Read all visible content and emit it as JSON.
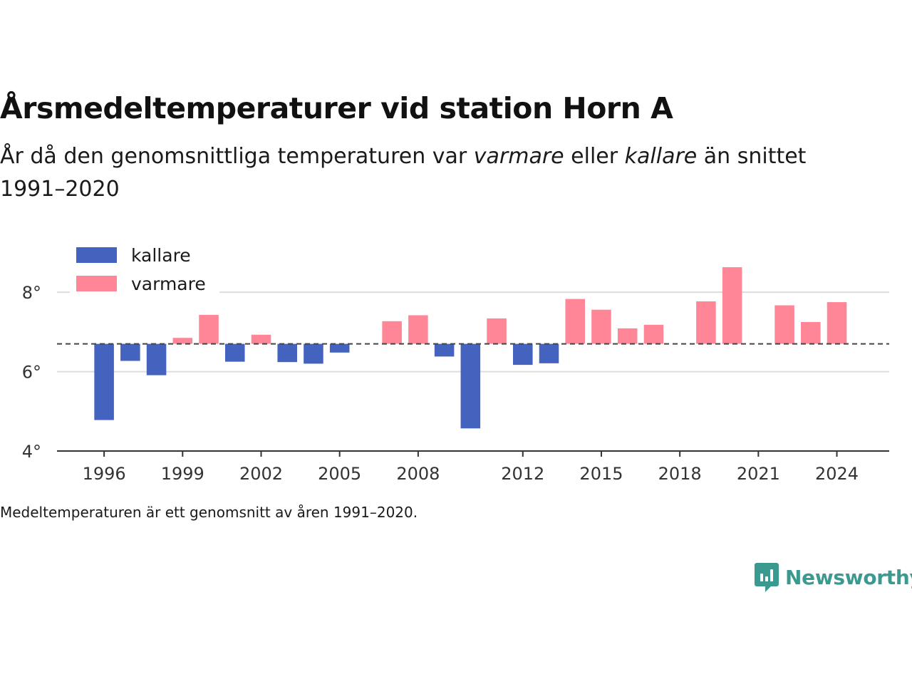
{
  "header": {
    "title": "Årsmedeltemperaturer vid station Horn A",
    "subtitle_part1": "År då den genomsnittliga temperaturen var ",
    "subtitle_warm": "varmare",
    "subtitle_part2": " eller ",
    "subtitle_cold": "kallare",
    "subtitle_part3": " än snittet 1991–2020"
  },
  "footnote": "Medeltemperaturen är ett genomsnitt av åren 1991–2020.",
  "brand": {
    "name": "Newsworthy",
    "icon": "newsworthy-logo-icon",
    "color": "#3b9a8f"
  },
  "chart_data": {
    "type": "bar",
    "title": "Årsmedeltemperaturer vid station Horn A",
    "xlabel": "",
    "ylabel": "",
    "baseline": 6.7,
    "ylim": [
      4,
      8.9
    ],
    "xlim": [
      1994.2,
      2026
    ],
    "yticks": [
      4,
      6,
      8
    ],
    "ytick_labels": [
      "4°",
      "6°",
      "8°"
    ],
    "xticks": [
      1996,
      1999,
      2002,
      2005,
      2008,
      2012,
      2015,
      2018,
      2021,
      2024
    ],
    "xtick_labels": [
      "1996",
      "1999",
      "2002",
      "2005",
      "2008",
      "2012",
      "2015",
      "2018",
      "2021",
      "2024"
    ],
    "grid": true,
    "legend_position": "top-left",
    "series": [
      {
        "name": "kallare",
        "color": "#4363be"
      },
      {
        "name": "varmare",
        "color": "#ff8696"
      }
    ],
    "years": [
      1996,
      1997,
      1998,
      1999,
      2000,
      2001,
      2002,
      2003,
      2004,
      2005,
      2006,
      2007,
      2008,
      2009,
      2010,
      2011,
      2012,
      2013,
      2014,
      2015,
      2016,
      2017,
      2018,
      2019,
      2020,
      2021,
      2022,
      2023,
      2024
    ],
    "values": [
      4.78,
      6.27,
      5.91,
      6.85,
      7.43,
      6.25,
      6.93,
      6.24,
      6.2,
      6.48,
      6.7,
      7.27,
      7.42,
      6.38,
      4.57,
      7.34,
      6.17,
      6.21,
      7.83,
      7.56,
      7.09,
      7.18,
      6.7,
      7.77,
      8.63,
      6.7,
      7.67,
      7.25,
      7.75
    ]
  }
}
